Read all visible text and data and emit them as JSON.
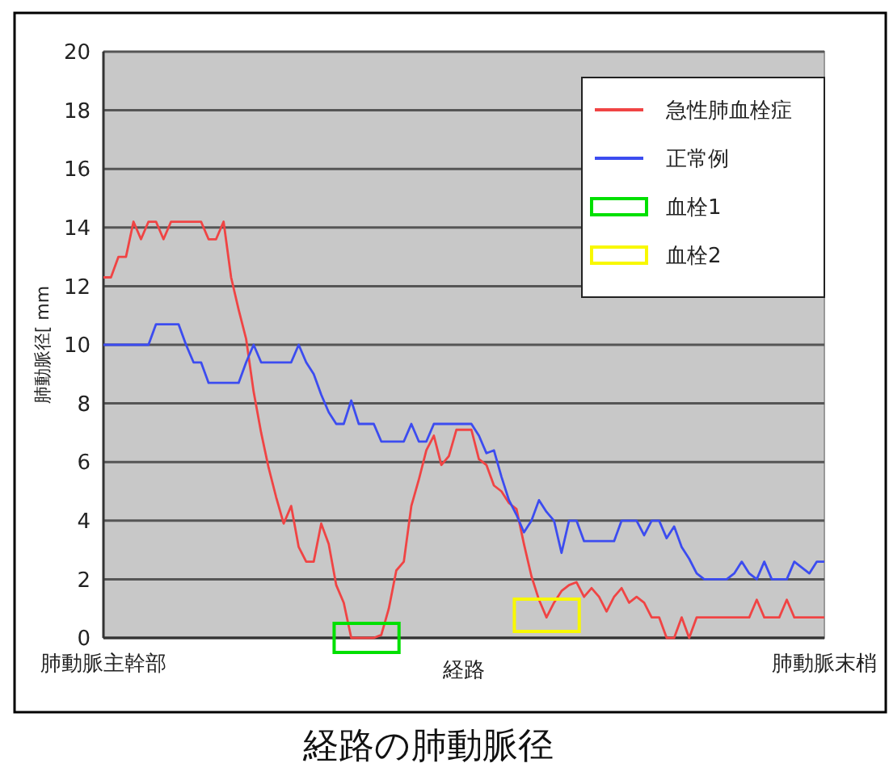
{
  "chart_data": {
    "type": "line",
    "title": "経路の肺動脈径",
    "xlabel": "経路",
    "ylabel": "肺動脈径[ mm",
    "categories": [
      "肺動脈主幹部",
      null,
      null,
      null,
      null,
      null,
      null,
      null,
      null,
      null,
      null,
      null,
      null,
      null,
      null,
      null,
      null,
      null,
      null,
      null,
      null,
      null,
      null,
      null,
      null,
      null,
      null,
      null,
      null,
      null,
      null,
      null,
      null,
      null,
      null,
      null,
      null,
      null,
      null,
      null,
      null,
      null,
      null,
      null,
      null,
      null,
      null,
      null,
      null,
      null,
      null,
      null,
      null,
      null,
      null,
      null,
      null,
      null,
      null,
      null,
      null,
      null,
      null,
      null,
      null,
      null,
      null,
      null,
      null,
      null,
      null,
      null,
      null,
      null,
      null,
      null,
      null,
      null,
      null,
      null,
      null,
      null,
      null,
      null,
      null,
      null,
      null,
      null,
      null,
      null,
      null,
      null,
      null,
      null,
      null,
      null,
      "肺動脈末梢"
    ],
    "ylim": [
      0,
      20
    ],
    "yticks": [
      0,
      2,
      4,
      6,
      8,
      10,
      12,
      14,
      16,
      18,
      20
    ],
    "grid": "y",
    "legend": "top right",
    "series": [
      {
        "name": "急性肺血栓症",
        "color": "#f04444",
        "values": [
          12.3,
          12.3,
          13.0,
          13.0,
          14.2,
          13.6,
          14.2,
          14.2,
          13.6,
          14.2,
          14.2,
          14.2,
          14.2,
          14.2,
          13.6,
          13.6,
          14.2,
          12.3,
          11.2,
          10.2,
          8.4,
          7.0,
          5.8,
          4.8,
          3.9,
          4.5,
          3.1,
          2.6,
          2.6,
          3.9,
          3.2,
          1.8,
          1.2,
          0,
          0,
          0,
          0,
          0.1,
          1.0,
          2.3,
          2.6,
          4.5,
          5.4,
          6.4,
          6.9,
          5.9,
          6.2,
          7.1,
          7.1,
          7.1,
          6.1,
          5.9,
          5.2,
          5.0,
          4.6,
          4.4,
          3.2,
          2.1,
          1.3,
          0.7,
          1.2,
          1.6,
          1.8,
          1.9,
          1.4,
          1.7,
          1.4,
          0.9,
          1.4,
          1.7,
          1.2,
          1.4,
          1.2,
          0.7,
          0.7,
          0,
          0,
          0.7,
          0,
          0.7,
          0.7,
          0.7,
          0.7,
          0.7,
          0.7,
          0.7,
          0.7,
          1.3,
          0.7,
          0.7,
          0.7,
          1.3,
          0.7,
          0.7,
          0.7,
          0.7,
          0.7
        ]
      },
      {
        "name": "正常例",
        "color": "#3c4cf0",
        "values": [
          10,
          10,
          10,
          10,
          10,
          10,
          10,
          10.7,
          10.7,
          10.7,
          10.7,
          10.0,
          9.4,
          9.4,
          8.7,
          8.7,
          8.7,
          8.7,
          8.7,
          9.4,
          10.0,
          9.4,
          9.4,
          9.4,
          9.4,
          9.4,
          10.0,
          9.4,
          9.0,
          8.3,
          7.7,
          7.3,
          7.3,
          8.1,
          7.3,
          7.3,
          7.3,
          6.7,
          6.7,
          6.7,
          6.7,
          7.3,
          6.7,
          6.7,
          7.3,
          7.3,
          7.3,
          7.3,
          7.3,
          7.3,
          6.9,
          6.3,
          6.4,
          5.5,
          4.7,
          4.2,
          3.6,
          4.0,
          4.7,
          4.3,
          4.0,
          2.9,
          4.0,
          4.0,
          3.3,
          3.3,
          3.3,
          3.3,
          3.3,
          4.0,
          4.0,
          4.0,
          3.5,
          4.0,
          4.0,
          3.4,
          3.8,
          3.1,
          2.7,
          2.2,
          2.0,
          2.0,
          2.0,
          2.0,
          2.2,
          2.6,
          2.2,
          2.0,
          2.6,
          2.0,
          2.0,
          2.0,
          2.6,
          2.4,
          2.2,
          2.6,
          2.6
        ]
      }
    ],
    "annotations": [
      "血栓1",
      "血栓2"
    ]
  }
}
